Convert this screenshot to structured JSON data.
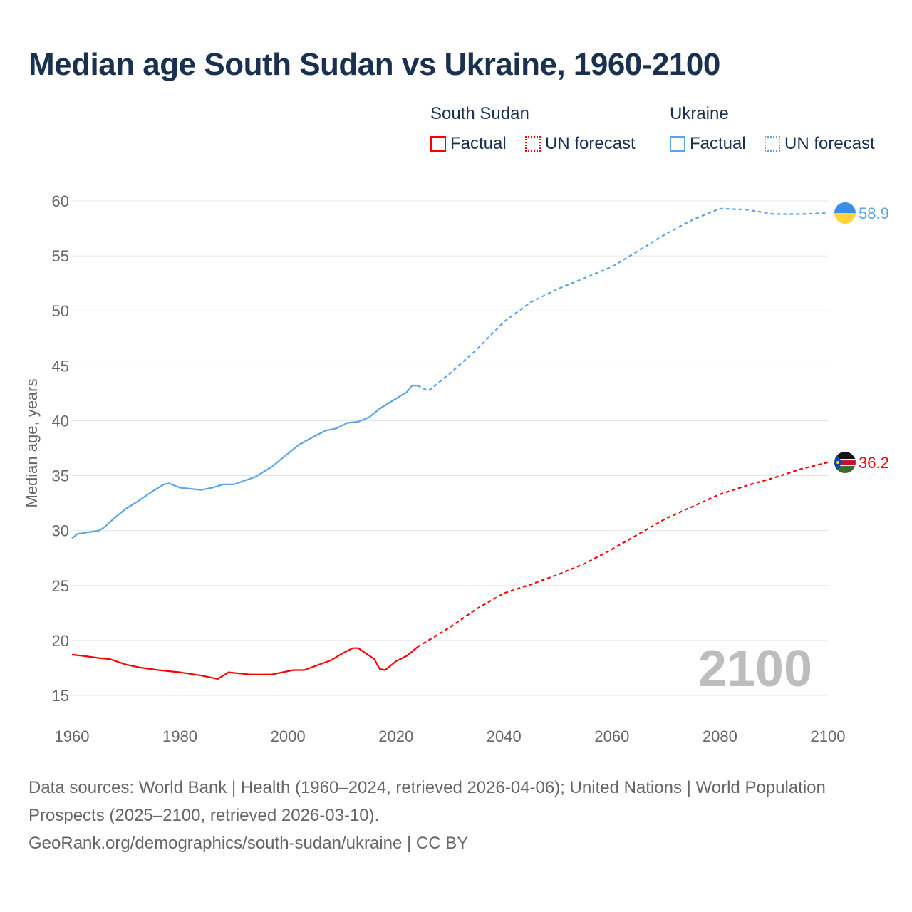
{
  "title": "Median age South Sudan vs Ukraine, 1960-2100",
  "legend": {
    "groups": [
      {
        "name": "South Sudan",
        "factual": "Factual",
        "forecast": "UN forecast",
        "color": "#ff0000"
      },
      {
        "name": "Ukraine",
        "factual": "Factual",
        "forecast": "UN forecast",
        "color": "#5aa5ea"
      }
    ]
  },
  "chart_data": {
    "type": "line",
    "title": "Median age South Sudan vs Ukraine, 1960-2100",
    "xlabel": "",
    "ylabel": "Median age, years",
    "xlim": [
      1960,
      2100
    ],
    "ylim": [
      15,
      60
    ],
    "xticks": [
      "1960",
      "1980",
      "2000",
      "2020",
      "2040",
      "2060",
      "2080",
      "2100"
    ],
    "yticks": [
      "15",
      "20",
      "25",
      "30",
      "35",
      "40",
      "45",
      "50",
      "55",
      "60"
    ],
    "grid": true,
    "year_watermark": "2100",
    "series": [
      {
        "name": "Ukraine",
        "kind": "Factual",
        "color": "#5aa5ea",
        "x": [
          1960,
          1961,
          1965,
          1966,
          1968,
          1970,
          1972,
          1975,
          1977,
          1978,
          1980,
          1982,
          1984,
          1986,
          1988,
          1990,
          1994,
          1997,
          2000,
          2002,
          2005,
          2007,
          2009,
          2011,
          2013,
          2015,
          2017,
          2020,
          2022,
          2023,
          2024
        ],
        "y": [
          29.3,
          29.7,
          30.0,
          30.3,
          31.2,
          32.0,
          32.6,
          33.6,
          34.2,
          34.3,
          33.9,
          33.8,
          33.7,
          33.9,
          34.2,
          34.2,
          34.9,
          35.8,
          37.0,
          37.8,
          38.6,
          39.1,
          39.3,
          39.8,
          39.9,
          40.3,
          41.1,
          42.0,
          42.6,
          43.2,
          43.2
        ]
      },
      {
        "name": "Ukraine",
        "kind": "UN forecast",
        "color": "#5aa5ea",
        "x": [
          2024,
          2026,
          2030,
          2035,
          2040,
          2045,
          2050,
          2055,
          2060,
          2065,
          2070,
          2075,
          2080,
          2085,
          2090,
          2095,
          2100
        ],
        "y": [
          43.2,
          42.7,
          44.3,
          46.5,
          49.0,
          50.8,
          52.0,
          53.0,
          54.0,
          55.5,
          57.0,
          58.3,
          59.3,
          59.2,
          58.8,
          58.8,
          58.9
        ]
      },
      {
        "name": "South Sudan",
        "kind": "Factual",
        "color": "#ff0000",
        "x": [
          1960,
          1962,
          1965,
          1967,
          1970,
          1973,
          1976,
          1980,
          1984,
          1987,
          1989,
          1991,
          1993,
          1997,
          2001,
          2003,
          2008,
          2010,
          2012,
          2013,
          2016,
          2017,
          2018,
          2020,
          2022,
          2024
        ],
        "y": [
          18.7,
          18.6,
          18.4,
          18.3,
          17.8,
          17.5,
          17.3,
          17.1,
          16.8,
          16.5,
          17.1,
          17.0,
          16.9,
          16.9,
          17.3,
          17.3,
          18.2,
          18.8,
          19.3,
          19.3,
          18.3,
          17.4,
          17.3,
          18.1,
          18.6,
          19.4
        ]
      },
      {
        "name": "South Sudan",
        "kind": "UN forecast",
        "color": "#ff0000",
        "x": [
          2024,
          2030,
          2035,
          2040,
          2045,
          2050,
          2055,
          2060,
          2065,
          2070,
          2075,
          2080,
          2085,
          2090,
          2095,
          2100
        ],
        "y": [
          19.4,
          21.2,
          22.9,
          24.3,
          25.1,
          26.0,
          27.0,
          28.3,
          29.7,
          31.1,
          32.2,
          33.3,
          34.1,
          34.8,
          35.6,
          36.2
        ]
      }
    ],
    "end_labels": [
      {
        "name": "Ukraine",
        "value": "58.9",
        "color": "#5aa5ea"
      },
      {
        "name": "South Sudan",
        "value": "36.2",
        "color": "#ff0000"
      }
    ]
  },
  "footer": {
    "sources": "Data sources: World Bank | Health (1960–2024, retrieved 2026-04-06); United Nations | World Population Prospects (2025–2100, retrieved 2026-03-10).",
    "credit": "GeoRank.org/demographics/south-sudan/ukraine | CC BY"
  }
}
